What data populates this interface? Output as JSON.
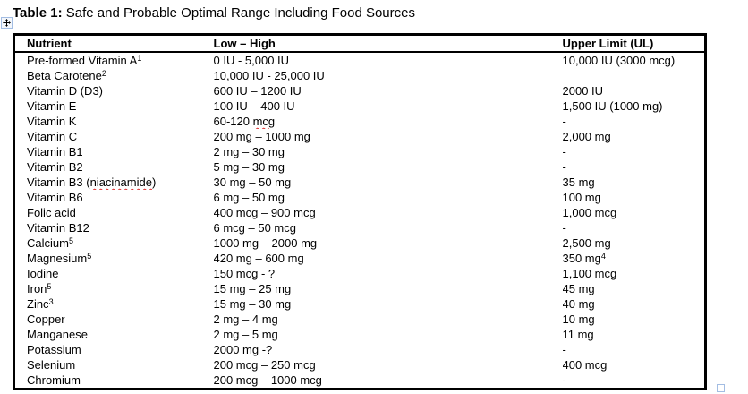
{
  "title": {
    "bold": "Table 1:",
    "rest": " Safe and Probable Optimal Range Including Food Sources"
  },
  "colors": {
    "background": "#ffffff",
    "text": "#000000",
    "table_border": "#000000",
    "handle_border": "#a3bde3",
    "spellcheck_underline": "#dd2c2c"
  },
  "icons": {
    "move_handle": "move-cross-icon",
    "resize_handle": "resize-square-icon"
  },
  "table": {
    "columns": [
      "Nutrient",
      "Low – High",
      "Upper Limit (UL)"
    ],
    "rows": [
      {
        "nutrient": [
          {
            "t": "Pre-formed Vitamin A"
          },
          {
            "t": "1",
            "sup": true
          }
        ],
        "range": [
          {
            "t": "0 IU - 5,000 IU"
          }
        ],
        "ul": [
          {
            "t": "10,000 IU (3000 mcg)"
          }
        ]
      },
      {
        "nutrient": [
          {
            "t": "Beta Carotene"
          },
          {
            "t": "2",
            "sup": true
          }
        ],
        "range": [
          {
            "t": "10,000 IU - 25,000 IU"
          }
        ],
        "ul": [
          {
            "t": ""
          }
        ]
      },
      {
        "nutrient": [
          {
            "t": "Vitamin D (D3)"
          }
        ],
        "range": [
          {
            "t": "600 IU – 1200 IU"
          }
        ],
        "ul": [
          {
            "t": "2000 IU"
          }
        ]
      },
      {
        "nutrient": [
          {
            "t": "Vitamin E"
          }
        ],
        "range": [
          {
            "t": "100 IU – 400 IU"
          }
        ],
        "ul": [
          {
            "t": "1,500 IU (1000 mg)"
          }
        ]
      },
      {
        "nutrient": [
          {
            "t": "Vitamin K"
          }
        ],
        "range": [
          {
            "t": "60-120 "
          },
          {
            "t": "mcg",
            "spell": true
          }
        ],
        "ul": [
          {
            "t": "-"
          }
        ]
      },
      {
        "nutrient": [
          {
            "t": "Vitamin C"
          }
        ],
        "range": [
          {
            "t": "200 mg – 1000 mg"
          }
        ],
        "ul": [
          {
            "t": "2,000 mg"
          }
        ]
      },
      {
        "nutrient": [
          {
            "t": "Vitamin B1"
          }
        ],
        "range": [
          {
            "t": "2 mg – 30 mg"
          }
        ],
        "ul": [
          {
            "t": "-"
          }
        ]
      },
      {
        "nutrient": [
          {
            "t": "Vitamin B2"
          }
        ],
        "range": [
          {
            "t": "5 mg – 30 mg"
          }
        ],
        "ul": [
          {
            "t": "-"
          }
        ]
      },
      {
        "nutrient": [
          {
            "t": "Vitamin B3 ("
          },
          {
            "t": "niacinamide",
            "spell": true
          },
          {
            "t": ")"
          }
        ],
        "range": [
          {
            "t": "30 mg – 50 mg"
          }
        ],
        "ul": [
          {
            "t": "35 mg"
          }
        ]
      },
      {
        "nutrient": [
          {
            "t": "Vitamin B6"
          }
        ],
        "range": [
          {
            "t": "6 mg – 50 mg"
          }
        ],
        "ul": [
          {
            "t": "100 mg"
          }
        ]
      },
      {
        "nutrient": [
          {
            "t": "Folic acid"
          }
        ],
        "range": [
          {
            "t": "400 mcg – 900 mcg"
          }
        ],
        "ul": [
          {
            "t": "1,000 mcg"
          }
        ]
      },
      {
        "nutrient": [
          {
            "t": "Vitamin B12"
          }
        ],
        "range": [
          {
            "t": "6 mcg – 50 mcg"
          }
        ],
        "ul": [
          {
            "t": "-"
          }
        ]
      },
      {
        "nutrient": [
          {
            "t": "Calcium"
          },
          {
            "t": "5",
            "sup": true
          }
        ],
        "range": [
          {
            "t": "1000 mg – 2000 mg"
          }
        ],
        "ul": [
          {
            "t": "2,500 mg"
          }
        ]
      },
      {
        "nutrient": [
          {
            "t": "Magnesium"
          },
          {
            "t": "5",
            "sup": true
          }
        ],
        "range": [
          {
            "t": "420 mg – 600 mg"
          }
        ],
        "ul": [
          {
            "t": "350 mg"
          },
          {
            "t": "4",
            "sup": true
          }
        ]
      },
      {
        "nutrient": [
          {
            "t": "Iodine"
          }
        ],
        "range": [
          {
            "t": "150 mcg - ?"
          }
        ],
        "ul": [
          {
            "t": "1,100 mcg"
          }
        ]
      },
      {
        "nutrient": [
          {
            "t": "Iron"
          },
          {
            "t": "5",
            "sup": true
          }
        ],
        "range": [
          {
            "t": "15 mg – 25 mg"
          }
        ],
        "ul": [
          {
            "t": "45 mg"
          }
        ]
      },
      {
        "nutrient": [
          {
            "t": "Zinc"
          },
          {
            "t": "3",
            "sup": true
          }
        ],
        "range": [
          {
            "t": "15 mg – 30 mg"
          }
        ],
        "ul": [
          {
            "t": "40 mg"
          }
        ]
      },
      {
        "nutrient": [
          {
            "t": "Copper"
          }
        ],
        "range": [
          {
            "t": "2 mg – 4 mg"
          }
        ],
        "ul": [
          {
            "t": "10 mg"
          }
        ]
      },
      {
        "nutrient": [
          {
            "t": "Manganese"
          }
        ],
        "range": [
          {
            "t": "2 mg – 5 mg"
          }
        ],
        "ul": [
          {
            "t": "11 mg"
          }
        ]
      },
      {
        "nutrient": [
          {
            "t": "Potassium"
          }
        ],
        "range": [
          {
            "t": "2000 mg -?"
          }
        ],
        "ul": [
          {
            "t": "-"
          }
        ]
      },
      {
        "nutrient": [
          {
            "t": "Selenium"
          }
        ],
        "range": [
          {
            "t": "200 mcg – 250 mcg"
          }
        ],
        "ul": [
          {
            "t": "400 mcg"
          }
        ]
      },
      {
        "nutrient": [
          {
            "t": "Chromium"
          }
        ],
        "range": [
          {
            "t": "200 mcg – 1000 mcg"
          }
        ],
        "ul": [
          {
            "t": "-"
          }
        ]
      }
    ]
  }
}
